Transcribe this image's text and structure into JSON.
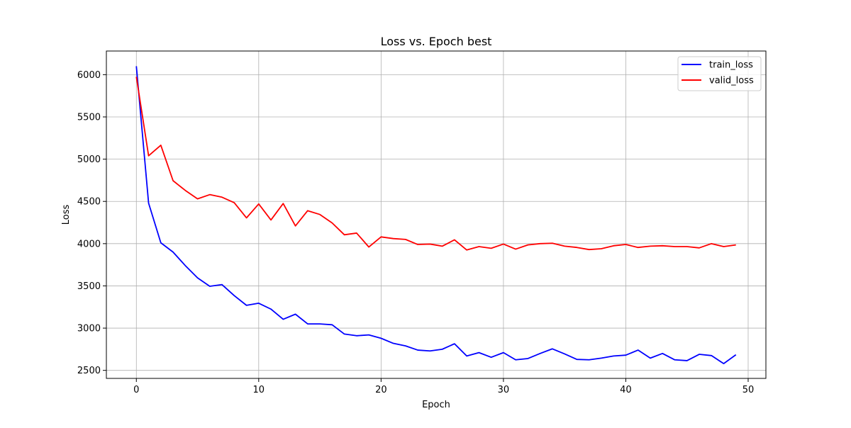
{
  "chart_data": {
    "type": "line",
    "title": "Loss vs. Epoch best",
    "xlabel": "Epoch",
    "ylabel": "Loss",
    "xlim": [
      -2.45,
      51.45
    ],
    "ylim": [
      2405,
      6280
    ],
    "xticks": [
      0,
      10,
      20,
      30,
      40,
      50
    ],
    "yticks": [
      2500,
      3000,
      3500,
      4000,
      4500,
      5000,
      5500,
      6000
    ],
    "grid": true,
    "legend_position": "top-right",
    "x": [
      0,
      1,
      2,
      3,
      4,
      5,
      6,
      7,
      8,
      9,
      10,
      11,
      12,
      13,
      14,
      15,
      16,
      17,
      18,
      19,
      20,
      21,
      22,
      23,
      24,
      25,
      26,
      27,
      28,
      29,
      30,
      31,
      32,
      33,
      34,
      35,
      36,
      37,
      38,
      39,
      40,
      41,
      42,
      43,
      44,
      45,
      46,
      47,
      48,
      49
    ],
    "series": [
      {
        "name": "train_loss",
        "color": "#0000ff",
        "values": [
          6100,
          4480,
          4010,
          3900,
          3740,
          3595,
          3495,
          3515,
          3385,
          3270,
          3295,
          3225,
          3105,
          3165,
          3050,
          3050,
          3040,
          2930,
          2910,
          2920,
          2880,
          2820,
          2790,
          2740,
          2730,
          2750,
          2815,
          2670,
          2710,
          2655,
          2710,
          2625,
          2640,
          2700,
          2755,
          2695,
          2630,
          2625,
          2645,
          2670,
          2680,
          2740,
          2645,
          2700,
          2625,
          2615,
          2690,
          2675,
          2580,
          2685
        ]
      },
      {
        "name": "valid_loss",
        "color": "#ff0000",
        "values": [
          5975,
          5040,
          5165,
          4745,
          4630,
          4530,
          4580,
          4550,
          4485,
          4305,
          4470,
          4280,
          4475,
          4210,
          4390,
          4345,
          4245,
          4105,
          4125,
          3960,
          4080,
          4060,
          4050,
          3990,
          3995,
          3970,
          4045,
          3925,
          3965,
          3945,
          3995,
          3935,
          3985,
          4000,
          4005,
          3970,
          3955,
          3930,
          3940,
          3975,
          3990,
          3955,
          3970,
          3975,
          3965,
          3965,
          3950,
          4000,
          3965,
          3985
        ]
      }
    ]
  }
}
